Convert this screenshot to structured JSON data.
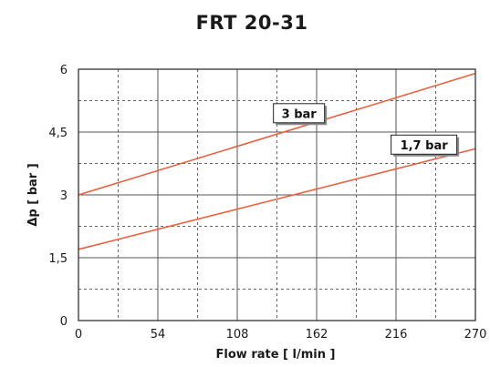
{
  "colors": {
    "series_line": "#e8623f",
    "grid_solid": "#555555",
    "grid_dashed": "#666666",
    "frame": "#222222",
    "label_box_shadow": "#8a8a8a"
  },
  "chart_data": {
    "type": "line",
    "title": "FRT 20-31",
    "xlabel": "Flow rate [ l/min ]",
    "ylabel": "Δp [ bar ]",
    "xlim": [
      0,
      270
    ],
    "ylim": [
      0,
      6
    ],
    "x_major_ticks": [
      {
        "value": 0,
        "label": "0"
      },
      {
        "value": 54,
        "label": "54"
      },
      {
        "value": 108,
        "label": "108"
      },
      {
        "value": 162,
        "label": "162"
      },
      {
        "value": 216,
        "label": "216"
      },
      {
        "value": 270,
        "label": "270"
      }
    ],
    "y_major_ticks": [
      {
        "value": 0,
        "label": "0"
      },
      {
        "value": 1.5,
        "label": "1,5"
      },
      {
        "value": 3,
        "label": "3"
      },
      {
        "value": 4.5,
        "label": "4,5"
      },
      {
        "value": 6,
        "label": "6"
      }
    ],
    "grid": true,
    "series": [
      {
        "name": "3 bar",
        "x": [
          0,
          270
        ],
        "y": [
          3.0,
          5.9
        ],
        "label_at": {
          "x": 150,
          "y": 4.95
        }
      },
      {
        "name": "1,7 bar",
        "x": [
          0,
          270
        ],
        "y": [
          1.7,
          4.1
        ],
        "label_at": {
          "x": 235,
          "y": 4.2
        }
      }
    ]
  }
}
